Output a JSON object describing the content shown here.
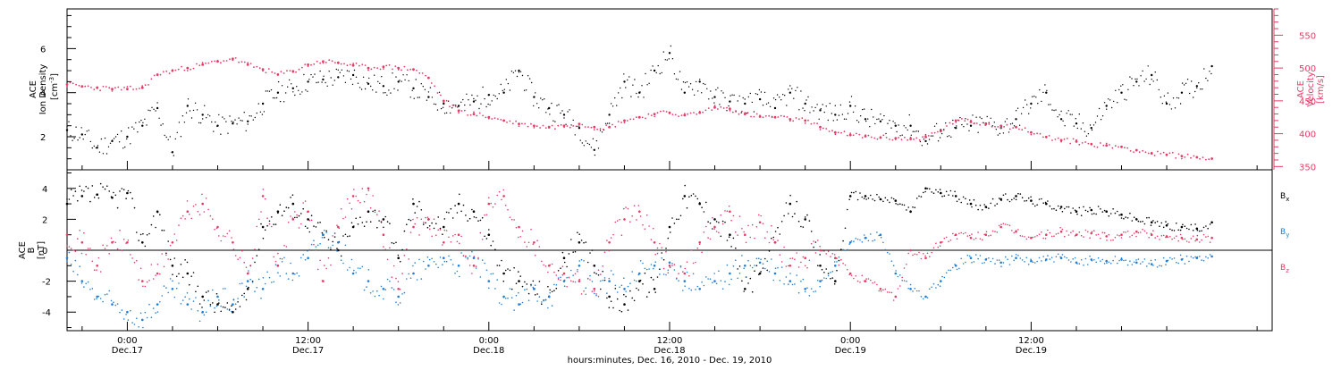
{
  "chart_data": [
    {
      "type": "scatter",
      "ylabel_lines": [
        "ACE",
        "Ion Density",
        "[cm",
        "-3",
        "]"
      ],
      "ylabel2_lines": [
        "ACE",
        "Velocity",
        "[km/s]"
      ],
      "ylim": [
        0.5,
        7.8
      ],
      "ylim2": [
        345,
        590
      ],
      "yticks": [
        2,
        4,
        6
      ],
      "yticks2": [
        350,
        400,
        450,
        500,
        550
      ],
      "x_unit": "hours since 2010-12-16 00:00",
      "xlim": [
        20,
        100
      ],
      "series": [
        {
          "name": "Ion Density",
          "color": "#000000",
          "axis": "left",
          "x": [
            20,
            21,
            22,
            23,
            24,
            25,
            26,
            27,
            28,
            29,
            30,
            31,
            32,
            33,
            34,
            35,
            36,
            37,
            38,
            39,
            40,
            41,
            42,
            43,
            44,
            45,
            46,
            47,
            48,
            49,
            50,
            51,
            52,
            53,
            54,
            55,
            56,
            57,
            58,
            59,
            60,
            61,
            62,
            63,
            64,
            65,
            66,
            67,
            68,
            69,
            70,
            71,
            72,
            73,
            74,
            75,
            76,
            77,
            78,
            79,
            80,
            81,
            82,
            83,
            84,
            85,
            86,
            87,
            88,
            89,
            90,
            91,
            92,
            93,
            94,
            95,
            96
          ],
          "y": [
            2.3,
            2.1,
            1.5,
            1.8,
            2.0,
            2.5,
            3.3,
            1.3,
            3.4,
            3.0,
            2.5,
            2.6,
            2.7,
            3.5,
            4.0,
            4.2,
            4.5,
            4.6,
            4.7,
            4.8,
            4.4,
            4.3,
            4.5,
            4.2,
            3.8,
            3.5,
            3.4,
            3.6,
            3.9,
            4.0,
            5.0,
            3.8,
            3.3,
            3.0,
            2.4,
            1.4,
            3.0,
            4.5,
            4.0,
            5.0,
            5.8,
            4.0,
            4.5,
            3.8,
            3.6,
            3.5,
            3.7,
            3.3,
            4.0,
            3.5,
            3.2,
            3.0,
            3.4,
            2.8,
            2.7,
            2.5,
            2.5,
            1.8,
            2.3,
            2.4,
            2.5,
            2.6,
            2.4,
            2.8,
            3.5,
            4.0,
            2.8,
            2.6,
            2.4,
            3.4,
            4.0,
            4.5,
            4.8,
            3.5,
            4.0,
            4.3,
            5.2
          ]
        },
        {
          "name": "Velocity",
          "color": "#e63a66",
          "axis": "right",
          "x": [
            20,
            21,
            22,
            23,
            24,
            25,
            26,
            27,
            28,
            29,
            30,
            31,
            32,
            33,
            34,
            35,
            36,
            37,
            38,
            39,
            40,
            41,
            42,
            43,
            44,
            45,
            46,
            47,
            48,
            49,
            50,
            51,
            52,
            53,
            54,
            55,
            56,
            57,
            58,
            59,
            60,
            61,
            62,
            63,
            64,
            65,
            66,
            67,
            68,
            69,
            70,
            71,
            72,
            73,
            74,
            75,
            76,
            77,
            78,
            79,
            80,
            81,
            82,
            83,
            84,
            85,
            86,
            87,
            88,
            89,
            90,
            91,
            92,
            93,
            94,
            95,
            96
          ],
          "y": [
            475,
            472,
            470,
            468,
            468,
            470,
            490,
            496,
            500,
            505,
            510,
            514,
            505,
            498,
            490,
            495,
            505,
            510,
            508,
            504,
            500,
            502,
            500,
            498,
            485,
            450,
            435,
            430,
            425,
            420,
            415,
            412,
            410,
            412,
            415,
            410,
            410,
            420,
            425,
            430,
            432,
            428,
            432,
            440,
            438,
            430,
            426,
            425,
            422,
            420,
            410,
            402,
            398,
            396,
            394,
            393,
            392,
            395,
            404,
            420,
            418,
            415,
            412,
            410,
            402,
            395,
            390,
            388,
            384,
            382,
            380,
            375,
            370,
            368,
            366,
            364,
            362
          ]
        }
      ]
    },
    {
      "type": "scatter",
      "ylabel_lines": [
        "ACE",
        "B",
        "[nT]"
      ],
      "ylim": [
        -5.2,
        5.2
      ],
      "yticks": [
        -4,
        -2,
        0,
        2,
        4
      ],
      "x_unit": "hours since 2010-12-16 00:00",
      "xlim": [
        20,
        100
      ],
      "xticks": [
        {
          "label": "0:00",
          "date": "Dec.17",
          "x": 24
        },
        {
          "label": "12:00",
          "date": "Dec.17",
          "x": 36
        },
        {
          "label": "0:00",
          "date": "Dec.18",
          "x": 48
        },
        {
          "label": "12:00",
          "date": "Dec.18",
          "x": 60
        },
        {
          "label": "0:00",
          "date": "Dec.19",
          "x": 72
        },
        {
          "label": "12:00",
          "date": "Dec.19",
          "x": 84
        }
      ],
      "xlabel": "hours:minutes, Dec. 16, 2010 - Dec. 19, 2010",
      "series": [
        {
          "name": "Bx",
          "label_main": "B",
          "label_sub": "x",
          "color": "#000000",
          "x": [
            20,
            21,
            22,
            23,
            24,
            25,
            26,
            27,
            28,
            29,
            30,
            31,
            32,
            33,
            34,
            35,
            36,
            37,
            38,
            39,
            40,
            41,
            42,
            43,
            44,
            45,
            46,
            47,
            48,
            49,
            50,
            51,
            52,
            53,
            54,
            55,
            56,
            57,
            58,
            59,
            60,
            61,
            62,
            63,
            64,
            65,
            66,
            67,
            68,
            69,
            70,
            71,
            72,
            73,
            74,
            75,
            76,
            77,
            78,
            79,
            80,
            81,
            82,
            83,
            84,
            85,
            86,
            87,
            88,
            89,
            90,
            91,
            92,
            93,
            94,
            95,
            96
          ],
          "y": [
            3.0,
            3.5,
            3.6,
            3.4,
            3.7,
            0.5,
            2.5,
            -1.0,
            -1.5,
            -3.0,
            -3.5,
            -4.0,
            -2.5,
            1.5,
            2.5,
            3.0,
            2.0,
            1.0,
            0.0,
            1.5,
            2.5,
            2.0,
            -0.5,
            3.0,
            2.0,
            1.5,
            3.0,
            2.5,
            1.0,
            -1.5,
            -2.0,
            -2.5,
            -3.0,
            -0.5,
            0.5,
            -1.0,
            -3.0,
            -3.5,
            -2.0,
            -2.5,
            1.5,
            3.5,
            3.0,
            2.0,
            1.0,
            -2.5,
            -1.5,
            0.5,
            3.0,
            2.0,
            -1.0,
            -2.0,
            3.5,
            3.5,
            3.3,
            3.2,
            2.5,
            4.0,
            3.7,
            3.5,
            3.0,
            2.8,
            3.3,
            3.5,
            3.2,
            3.0,
            2.8,
            2.5,
            2.6,
            2.5,
            2.3,
            2.0,
            1.8,
            1.6,
            1.5,
            1.4,
            1.8
          ]
        },
        {
          "name": "By",
          "label_main": "B",
          "label_sub": "y",
          "color": "#1f7fd8",
          "x": [
            20,
            21,
            22,
            23,
            24,
            25,
            26,
            27,
            28,
            29,
            30,
            31,
            32,
            33,
            34,
            35,
            36,
            37,
            38,
            39,
            40,
            41,
            42,
            43,
            44,
            45,
            46,
            47,
            48,
            49,
            50,
            51,
            52,
            53,
            54,
            55,
            56,
            57,
            58,
            59,
            60,
            61,
            62,
            63,
            64,
            65,
            66,
            67,
            68,
            69,
            70,
            71,
            72,
            73,
            74,
            75,
            76,
            77,
            78,
            79,
            80,
            81,
            82,
            83,
            84,
            85,
            86,
            87,
            88,
            89,
            90,
            91,
            92,
            93,
            94,
            95,
            96
          ],
          "y": [
            -0.5,
            -2.0,
            -3.0,
            -3.5,
            -4.0,
            -4.5,
            -3.5,
            -2.5,
            -3.5,
            -4.0,
            -3.0,
            -3.5,
            -2.0,
            -2.5,
            -1.0,
            -1.5,
            -0.5,
            1.0,
            0.5,
            -1.5,
            -2.0,
            -2.5,
            -3.0,
            -1.5,
            -1.0,
            -0.5,
            -1.0,
            -0.5,
            -2.0,
            -3.0,
            -3.5,
            -2.5,
            -3.0,
            -2.0,
            -1.0,
            -2.5,
            -2.0,
            -2.5,
            -1.5,
            -1.0,
            -0.8,
            -2.0,
            -2.5,
            -2.0,
            -1.5,
            -1.0,
            -0.8,
            -1.5,
            -2.0,
            -2.5,
            -2.0,
            -1.0,
            0.5,
            0.8,
            1.0,
            -1.5,
            -2.5,
            -3.0,
            -2.0,
            -1.0,
            -0.5,
            -0.6,
            -0.8,
            -0.5,
            -0.7,
            -0.6,
            -0.5,
            -0.8,
            -0.6,
            -0.7,
            -0.6,
            -0.8,
            -0.9,
            -0.7,
            -0.6,
            -0.5,
            -0.4
          ]
        },
        {
          "name": "Bz",
          "label_main": "B",
          "label_sub": "z",
          "color": "#e63a66",
          "x": [
            20,
            21,
            22,
            23,
            24,
            25,
            26,
            27,
            28,
            29,
            30,
            31,
            32,
            33,
            34,
            35,
            36,
            37,
            38,
            39,
            40,
            41,
            42,
            43,
            44,
            45,
            46,
            47,
            48,
            49,
            50,
            51,
            52,
            53,
            54,
            55,
            56,
            57,
            58,
            59,
            60,
            61,
            62,
            63,
            64,
            65,
            66,
            67,
            68,
            69,
            70,
            71,
            72,
            73,
            74,
            75,
            76,
            77,
            78,
            79,
            80,
            81,
            82,
            83,
            84,
            85,
            86,
            87,
            88,
            89,
            90,
            91,
            92,
            93,
            94,
            95,
            96
          ],
          "y": [
            1.0,
            0.5,
            -1.0,
            0.5,
            0.5,
            -2.0,
            -1.5,
            0.5,
            2.5,
            3.0,
            1.5,
            0.5,
            -1.5,
            3.5,
            -1.0,
            2.0,
            2.5,
            -2.0,
            1.5,
            3.5,
            4.0,
            1.0,
            -2.5,
            1.5,
            2.0,
            0.5,
            1.0,
            -1.0,
            3.0,
            3.5,
            1.5,
            0.5,
            -1.0,
            -1.5,
            -2.0,
            -2.5,
            0.5,
            2.0,
            2.5,
            0.5,
            -1.0,
            -1.5,
            0.5,
            1.5,
            2.5,
            1.0,
            1.8,
            0.5,
            -1.0,
            -0.5,
            0.0,
            -0.5,
            -1.5,
            -2.0,
            -2.5,
            -3.0,
            0.0,
            -0.5,
            0.5,
            1.0,
            0.8,
            1.0,
            1.5,
            1.2,
            0.8,
            1.0,
            1.2,
            1.0,
            1.1,
            0.9,
            1.0,
            1.2,
            1.0,
            0.9,
            0.8,
            0.7,
            0.8
          ]
        }
      ]
    }
  ]
}
